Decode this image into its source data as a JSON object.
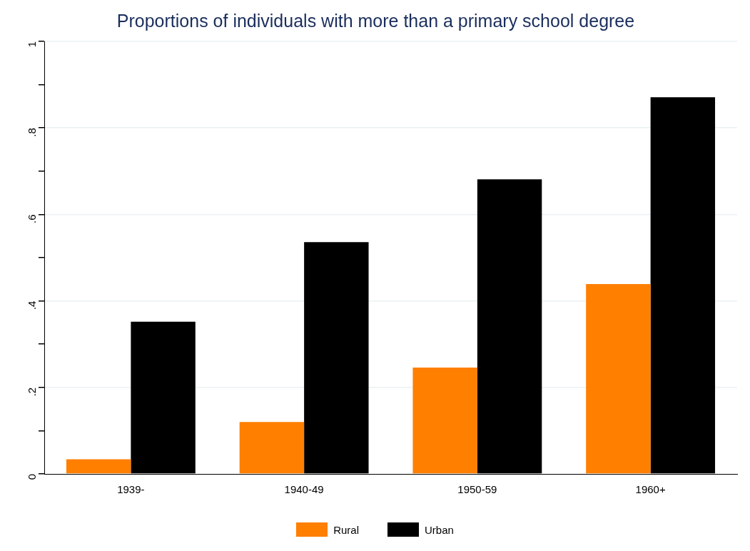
{
  "chart_data": {
    "type": "bar",
    "title": "Proportions of individuals with more than a primary school degree",
    "categories": [
      "1939-",
      "1940-49",
      "1950-59",
      "1960+"
    ],
    "series": [
      {
        "name": "Rural",
        "color": "#ff7f00",
        "values": [
          0.034,
          0.12,
          0.246,
          0.439
        ]
      },
      {
        "name": "Urban",
        "color": "#000000",
        "values": [
          0.352,
          0.536,
          0.681,
          0.871
        ]
      }
    ],
    "ylim": [
      0,
      1
    ],
    "yticks": [
      0,
      {
        "value": 0.1,
        "label": null
      },
      {
        "value": 0.2,
        "label": ".2"
      },
      {
        "value": 0.3,
        "label": null
      },
      {
        "value": 0.4,
        "label": ".4"
      },
      {
        "value": 0.5,
        "label": null
      },
      {
        "value": 0.6,
        "label": ".6"
      },
      {
        "value": 0.7,
        "label": null
      },
      {
        "value": 0.8,
        "label": ".8"
      },
      {
        "value": 0.9,
        "label": null
      },
      1
    ],
    "grid": "y",
    "legend": "bottom"
  }
}
